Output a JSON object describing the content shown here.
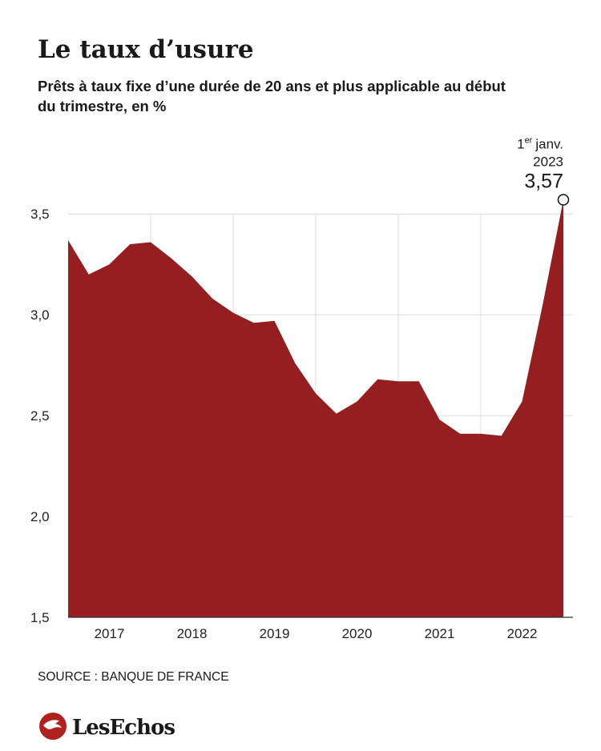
{
  "chart_data": {
    "type": "area",
    "title": "Le taux d’usure",
    "subtitle": [
      "Prêts à taux fixe d’une durée de 20 ans et plus applicable au début",
      "du trimestre, en %"
    ],
    "x": [
      2017,
      2017.25,
      2017.5,
      2017.75,
      2018,
      2018.25,
      2018.5,
      2018.75,
      2019,
      2019.25,
      2019.5,
      2019.75,
      2020,
      2020.25,
      2020.5,
      2020.75,
      2021,
      2021.25,
      2021.5,
      2021.75,
      2022,
      2022.25,
      2022.5,
      2022.75,
      2023
    ],
    "series": [
      {
        "name": "Taux d’usure",
        "color": "#951f20",
        "values": [
          3.37,
          3.2,
          3.25,
          3.35,
          3.36,
          3.28,
          3.19,
          3.08,
          3.01,
          2.96,
          2.97,
          2.76,
          2.61,
          2.51,
          2.57,
          2.68,
          2.67,
          2.67,
          2.48,
          2.41,
          2.41,
          2.4,
          2.57,
          3.05,
          3.57
        ],
        "value_labels": [
          null,
          null,
          null,
          null,
          null,
          null,
          null,
          null,
          null,
          null,
          null,
          null,
          null,
          null,
          null,
          null,
          null,
          null,
          null,
          null,
          null,
          null,
          null,
          null,
          "3,57"
        ]
      }
    ],
    "annotation": {
      "day": "1",
      "suffix": "er",
      "month": "janv.",
      "year": "2023"
    },
    "xlim": [
      2017,
      2023
    ],
    "xticks": [
      {
        "value": 2017.5,
        "label": "2017"
      },
      {
        "value": 2018.5,
        "label": "2018"
      },
      {
        "value": 2019.5,
        "label": "2019"
      },
      {
        "value": 2020.5,
        "label": "2020"
      },
      {
        "value": 2021.5,
        "label": "2021"
      },
      {
        "value": 2022.5,
        "label": "2022"
      }
    ],
    "ylim": [
      1.5,
      3.6
    ],
    "yticks": [
      {
        "value": 1.5,
        "label": "1,5"
      },
      {
        "value": 2,
        "label": "2,0"
      },
      {
        "value": 2.5,
        "label": "2,5"
      },
      {
        "value": 3,
        "label": "3,0"
      },
      {
        "value": 3.5,
        "label": "3,5"
      }
    ],
    "grid": true,
    "source": "SOURCE : BANQUE DE FRANCE",
    "brand": "LesEchos"
  }
}
